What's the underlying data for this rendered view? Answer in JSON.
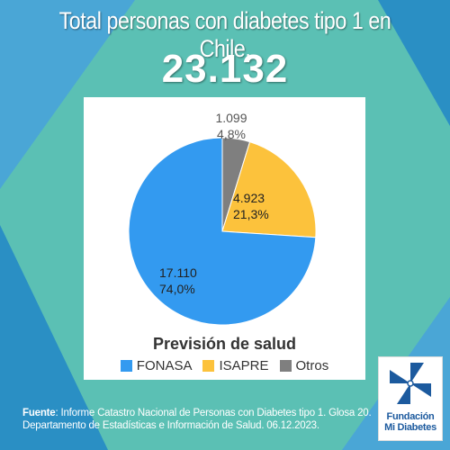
{
  "headline": {
    "title": "Total personas con diabetes tipo 1 en Chile.",
    "total": "23.132"
  },
  "chart_data": {
    "type": "pie",
    "title": "Previsión de salud",
    "slices": [
      {
        "name": "FONASA",
        "value": 17110,
        "value_label": "17.110",
        "percent_label": "74,0%",
        "color": "#339af0"
      },
      {
        "name": "ISAPRE",
        "value": 4923,
        "value_label": "4.923",
        "percent_label": "21,3%",
        "color": "#fcc23c"
      },
      {
        "name": "Otros",
        "value": 1099,
        "value_label": "1.099",
        "percent_label": "4,8%",
        "color": "#7f7f7f"
      }
    ],
    "legend_position": "bottom"
  },
  "source": {
    "label": "Fuente",
    "text": ": Informe Catastro Nacional de Personas con Diabetes tipo 1. Glosa 20. Departamento de Estadísticas e Información de Salud. 06.12.2023."
  },
  "logo": {
    "line1": "Fundación",
    "line2": "Mi Diabetes",
    "color": "#1c5a9e"
  },
  "colors": {
    "background": "#5bc0b4",
    "accent_dark": "#2a8fc4",
    "accent_light": "#4fa8d9"
  }
}
